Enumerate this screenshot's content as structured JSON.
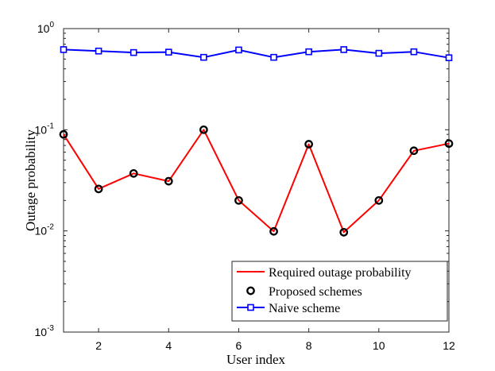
{
  "chart_data": {
    "type": "line",
    "title": "",
    "xlabel": "User index",
    "ylabel": "Outage probability",
    "xlim": [
      1,
      12
    ],
    "ylim": [
      0.001,
      1
    ],
    "yscale": "log",
    "x": [
      1,
      2,
      3,
      4,
      5,
      6,
      7,
      8,
      9,
      10,
      11,
      12
    ],
    "x_ticks": [
      2,
      4,
      6,
      8,
      10,
      12
    ],
    "y_ticks": [
      {
        "base": "10",
        "exp": "0"
      },
      {
        "base": "10",
        "exp": "-1"
      },
      {
        "base": "10",
        "exp": "-2"
      },
      {
        "base": "10",
        "exp": "-3"
      }
    ],
    "grid": false,
    "legend_position": "bottom-right",
    "series": [
      {
        "name": "Required outage probability",
        "style": "line",
        "color": "#ff0000",
        "values": [
          0.09,
          0.026,
          0.037,
          0.031,
          0.1,
          0.02,
          0.0099,
          0.072,
          0.0097,
          0.02,
          0.062,
          0.073
        ]
      },
      {
        "name": "Proposed schemes",
        "style": "circle-marker",
        "color": "#000000",
        "values": [
          0.09,
          0.026,
          0.037,
          0.031,
          0.1,
          0.02,
          0.0099,
          0.072,
          0.0097,
          0.02,
          0.062,
          0.073
        ]
      },
      {
        "name": "Naive scheme",
        "style": "line-square",
        "color": "#0000ff",
        "values": [
          0.62,
          0.6,
          0.58,
          0.585,
          0.52,
          0.615,
          0.52,
          0.59,
          0.62,
          0.57,
          0.59,
          0.515
        ]
      }
    ]
  }
}
